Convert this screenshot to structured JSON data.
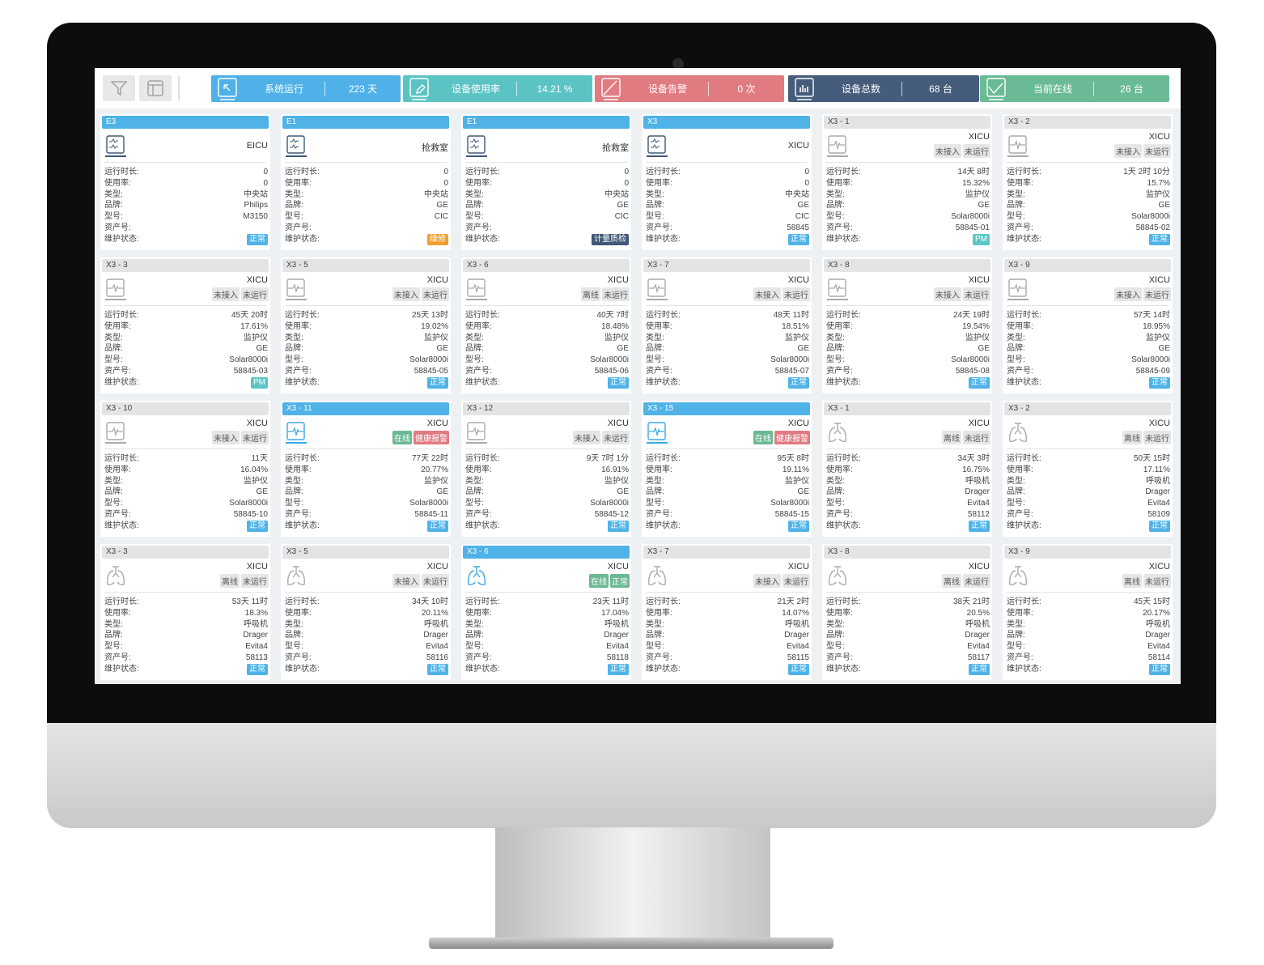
{
  "toolbar": {
    "filter_icon": "filter-icon",
    "layout_icon": "layout-icon",
    "stats": [
      {
        "label": "系统运行",
        "value": "223 天",
        "color": "#4fb1e8",
        "icon": "cursor-icon"
      },
      {
        "label": "设备使用率",
        "value": "14.21 %",
        "color": "#5cc3c4",
        "icon": "edit-icon"
      },
      {
        "label": "设备告警",
        "value": "0 次",
        "color": "#e07b82",
        "icon": "alert-icon"
      },
      {
        "label": "设备总数",
        "value": "68 台",
        "color": "#455c7b",
        "icon": "bar-chart-icon"
      },
      {
        "label": "当前在线",
        "value": "26 台",
        "color": "#6bba96",
        "icon": "line-chart-icon"
      }
    ]
  },
  "labels": [
    "运行时长:",
    "使用率:",
    "类型:",
    "品牌:",
    "型号:",
    "资产号:",
    "维护状态:"
  ],
  "cards": [
    {
      "title": "E3",
      "active": true,
      "icon": "central",
      "location": "EICU",
      "tags": [],
      "runtime": "0",
      "usage": "0",
      "type": "中央站",
      "brand": "Philips",
      "model": "M3150",
      "asset": "",
      "status": "正常",
      "status_kind": "normal"
    },
    {
      "title": "E1",
      "active": true,
      "icon": "central",
      "location": "抢救室",
      "tags": [],
      "runtime": "0",
      "usage": "0",
      "type": "中央站",
      "brand": "GE",
      "model": "CIC",
      "asset": "",
      "status": "维修",
      "status_kind": "maint"
    },
    {
      "title": "E1",
      "active": true,
      "icon": "central",
      "location": "抢救室",
      "tags": [],
      "runtime": "0",
      "usage": "0",
      "type": "中央站",
      "brand": "GE",
      "model": "CIC",
      "asset": "",
      "status": "计量质检",
      "status_kind": "metro"
    },
    {
      "title": "X3",
      "active": true,
      "icon": "central",
      "location": "XICU",
      "tags": [],
      "runtime": "0",
      "usage": "0",
      "type": "中央站",
      "brand": "GE",
      "model": "CIC",
      "asset": "58845",
      "status": "正常",
      "status_kind": "normal"
    },
    {
      "title": "X3 - 1",
      "active": false,
      "icon": "monitor",
      "location": "XICU",
      "tags": [
        "未接入",
        "未运行"
      ],
      "runtime": "14天 8时",
      "usage": "15.32%",
      "type": "监护仪",
      "brand": "GE",
      "model": "Solar8000i",
      "asset": "58845-01",
      "status": "PM",
      "status_kind": "pm"
    },
    {
      "title": "X3 - 2",
      "active": false,
      "icon": "monitor",
      "location": "XICU",
      "tags": [
        "未接入",
        "未运行"
      ],
      "runtime": "1天 2时 10分",
      "usage": "15.7%",
      "type": "监护仪",
      "brand": "GE",
      "model": "Solar8000i",
      "asset": "58845-02",
      "status": "正常",
      "status_kind": "normal"
    },
    {
      "title": "X3 - 3",
      "active": false,
      "icon": "monitor",
      "location": "XICU",
      "tags": [
        "未接入",
        "未运行"
      ],
      "runtime": "45天 20时",
      "usage": "17.61%",
      "type": "监护仪",
      "brand": "GE",
      "model": "Solar8000i",
      "asset": "58845-03",
      "status": "PM",
      "status_kind": "pm"
    },
    {
      "title": "X3 - 5",
      "active": false,
      "icon": "monitor",
      "location": "XICU",
      "tags": [
        "未接入",
        "未运行"
      ],
      "runtime": "25天 13时",
      "usage": "19.02%",
      "type": "监护仪",
      "brand": "GE",
      "model": "Solar8000i",
      "asset": "58845-05",
      "status": "正常",
      "status_kind": "normal"
    },
    {
      "title": "X3 - 6",
      "active": false,
      "icon": "monitor",
      "location": "XICU",
      "tags": [
        "离线",
        "未运行"
      ],
      "runtime": "40天 7时",
      "usage": "18.48%",
      "type": "监护仪",
      "brand": "GE",
      "model": "Solar8000i",
      "asset": "58845-06",
      "status": "正常",
      "status_kind": "normal"
    },
    {
      "title": "X3 - 7",
      "active": false,
      "icon": "monitor",
      "location": "XICU",
      "tags": [
        "未接入",
        "未运行"
      ],
      "runtime": "48天 11时",
      "usage": "18.51%",
      "type": "监护仪",
      "brand": "GE",
      "model": "Solar8000i",
      "asset": "58845-07",
      "status": "正常",
      "status_kind": "normal"
    },
    {
      "title": "X3 - 8",
      "active": false,
      "icon": "monitor",
      "location": "XICU",
      "tags": [
        "未接入",
        "未运行"
      ],
      "runtime": "24天 19时",
      "usage": "19.54%",
      "type": "监护仪",
      "brand": "GE",
      "model": "Solar8000i",
      "asset": "58845-08",
      "status": "正常",
      "status_kind": "normal"
    },
    {
      "title": "X3 - 9",
      "active": false,
      "icon": "monitor",
      "location": "XICU",
      "tags": [
        "未接入",
        "未运行"
      ],
      "runtime": "57天 14时",
      "usage": "18.95%",
      "type": "监护仪",
      "brand": "GE",
      "model": "Solar8000i",
      "asset": "58845-09",
      "status": "正常",
      "status_kind": "normal"
    },
    {
      "title": "X3 - 10",
      "active": false,
      "icon": "monitor",
      "location": "XICU",
      "tags": [
        "未接入",
        "未运行"
      ],
      "runtime": "11天",
      "usage": "16.04%",
      "type": "监护仪",
      "brand": "GE",
      "model": "Solar8000i",
      "asset": "58845-10",
      "status": "正常",
      "status_kind": "normal"
    },
    {
      "title": "X3 - 11",
      "active": true,
      "icon": "monitor",
      "location": "XICU",
      "tags": [
        "在线",
        "健康报警"
      ],
      "runtime": "77天 22时",
      "usage": "20.77%",
      "type": "监护仪",
      "brand": "GE",
      "model": "Solar8000i",
      "asset": "58845-11",
      "status": "正常",
      "status_kind": "normal"
    },
    {
      "title": "X3 - 12",
      "active": false,
      "icon": "monitor",
      "location": "XICU",
      "tags": [
        "未接入",
        "未运行"
      ],
      "runtime": "9天 7时 1分",
      "usage": "16.91%",
      "type": "监护仪",
      "brand": "GE",
      "model": "Solar8000i",
      "asset": "58845-12",
      "status": "正常",
      "status_kind": "normal"
    },
    {
      "title": "X3 - 15",
      "active": true,
      "icon": "monitor",
      "location": "XICU",
      "tags": [
        "在线",
        "健康报警"
      ],
      "runtime": "95天 8时",
      "usage": "19.11%",
      "type": "监护仪",
      "brand": "GE",
      "model": "Solar8000i",
      "asset": "58845-15",
      "status": "正常",
      "status_kind": "normal"
    },
    {
      "title": "X3 - 1",
      "active": false,
      "icon": "ventilator",
      "location": "XICU",
      "tags": [
        "离线",
        "未运行"
      ],
      "runtime": "34天 3时",
      "usage": "16.75%",
      "type": "呼吸机",
      "brand": "Drager",
      "model": "Evita4",
      "asset": "58112",
      "status": "正常",
      "status_kind": "normal"
    },
    {
      "title": "X3 - 2",
      "active": false,
      "icon": "ventilator",
      "location": "XICU",
      "tags": [
        "离线",
        "未运行"
      ],
      "runtime": "50天 15时",
      "usage": "17.11%",
      "type": "呼吸机",
      "brand": "Drager",
      "model": "Evita4",
      "asset": "58109",
      "status": "正常",
      "status_kind": "normal"
    },
    {
      "title": "X3 - 3",
      "active": false,
      "icon": "ventilator",
      "location": "XICU",
      "tags": [
        "离线",
        "未运行"
      ],
      "runtime": "53天 11时",
      "usage": "18.3%",
      "type": "呼吸机",
      "brand": "Drager",
      "model": "Evita4",
      "asset": "58113",
      "status": "正常",
      "status_kind": "normal"
    },
    {
      "title": "X3 - 5",
      "active": false,
      "icon": "ventilator",
      "location": "XICU",
      "tags": [
        "未接入",
        "未运行"
      ],
      "runtime": "34天 10时",
      "usage": "20.11%",
      "type": "呼吸机",
      "brand": "Drager",
      "model": "Evita4",
      "asset": "58116",
      "status": "正常",
      "status_kind": "normal"
    },
    {
      "title": "X3 - 6",
      "active": true,
      "icon": "ventilator",
      "location": "XICU",
      "tags": [
        "在线",
        "正常"
      ],
      "runtime": "23天 11时",
      "usage": "17.04%",
      "type": "呼吸机",
      "brand": "Drager",
      "model": "Evita4",
      "asset": "58118",
      "status": "正常",
      "status_kind": "normal"
    },
    {
      "title": "X3 - 7",
      "active": false,
      "icon": "ventilator",
      "location": "XICU",
      "tags": [
        "未接入",
        "未运行"
      ],
      "runtime": "21天 2时",
      "usage": "14.07%",
      "type": "呼吸机",
      "brand": "Drager",
      "model": "Evita4",
      "asset": "58115",
      "status": "正常",
      "status_kind": "normal"
    },
    {
      "title": "X3 - 8",
      "active": false,
      "icon": "ventilator",
      "location": "XICU",
      "tags": [
        "离线",
        "未运行"
      ],
      "runtime": "38天 21时",
      "usage": "20.5%",
      "type": "呼吸机",
      "brand": "Drager",
      "model": "Evita4",
      "asset": "58117",
      "status": "正常",
      "status_kind": "normal"
    },
    {
      "title": "X3 - 9",
      "active": false,
      "icon": "ventilator",
      "location": "XICU",
      "tags": [
        "离线",
        "未运行"
      ],
      "runtime": "45天 15时",
      "usage": "20.17%",
      "type": "呼吸机",
      "brand": "Drager",
      "model": "Evita4",
      "asset": "58114",
      "status": "正常",
      "status_kind": "normal"
    }
  ]
}
